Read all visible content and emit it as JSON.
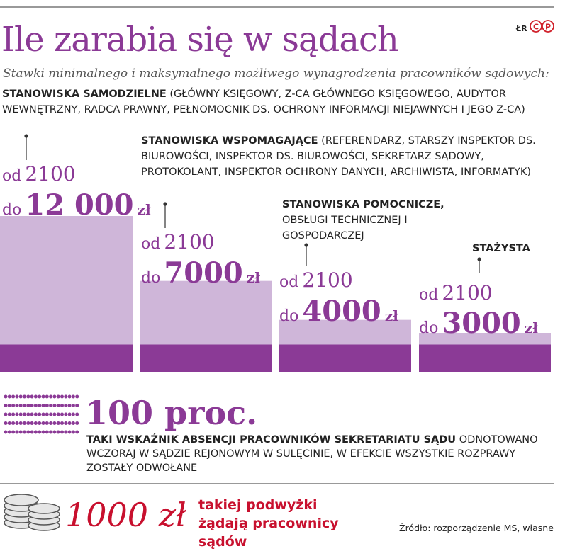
{
  "chart_data": {
    "type": "bar",
    "title": "Ile zarabia się w sądach",
    "subtitle": "Stawki minimalnego i maksymalnego możliwego wynagrodzenia pracowników sądowych:",
    "credit": "ŁR",
    "logo": [
      "C",
      "P"
    ],
    "categories": [
      "STANOWISKA SAMODZIELNE",
      "STANOWISKA WSPOMAGAJĄCE",
      "STANOWISKA POMOCNICZE,",
      "STAŻYSTA"
    ],
    "category_details": [
      "(GŁÓWNY KSIĘGOWY, Z-CA GŁÓWNEGO KSIĘGOWEGO, AUDYTOR WEWNĘTRZNY, RADCA PRAWNY, PEŁNOMOCNIK DS. OCHRONY INFORMACJI NIEJAWNYCH I JEGO Z-CA)",
      "(REFERENDARZ, STARSZY INSPEKTOR DS. BIUROWOŚCI, INSPEKTOR DS. BIUROWOŚCI, SEKRETARZ SĄDOWY, PROTOKOLANT, INSPEKTOR OCHRONY DANYCH, ARCHIWISTA, INFORMATYK)",
      "OBSŁUGI TECHNICZNEJ I GOSPODARCZEJ",
      null
    ],
    "unit": "zł",
    "series": [
      {
        "name": "od",
        "color": "#8b3a96",
        "values": [
          2100,
          2100,
          2100,
          2100
        ]
      },
      {
        "name": "do",
        "color": "#cfb6d9",
        "values": [
          12000,
          7000,
          4000,
          3000
        ],
        "value_labels": [
          "12 000",
          "7000",
          "4000",
          "3000"
        ]
      }
    ]
  },
  "stat": {
    "value": 100,
    "unit": "proc.",
    "lead": "TAKI WSKAŹNIK ABSENCJI PRACOWNIKÓW SEKRETARIATU SĄDU",
    "text": "ODNOTOWANO WCZORAJ W SĄDZIE REJONOWYM W SULĘCINIE, W EFEKCIE WSZYSTKIE ROZPRAWY ZOSTAŁY ODWOŁANE"
  },
  "demand": {
    "amount": "1000 zł",
    "text": "takiej podwyżki żądają pracownicy sądów"
  },
  "source": "Źródło: rozporządzenie MS, własne"
}
